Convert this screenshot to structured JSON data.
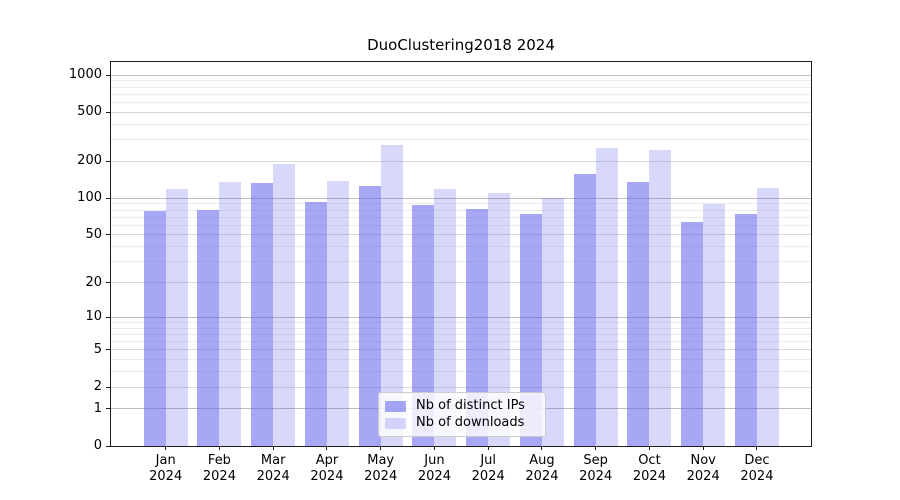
{
  "title": "DuoClustering2018 2024",
  "chart_data": {
    "type": "bar",
    "title": "DuoClustering2018 2024",
    "categories": [
      "Jan 2024",
      "Feb 2024",
      "Mar 2024",
      "Apr 2024",
      "May 2024",
      "Jun 2024",
      "Jul 2024",
      "Aug 2024",
      "Sep 2024",
      "Oct 2024",
      "Nov 2024",
      "Dec 2024"
    ],
    "x_tick_months": [
      "Jan",
      "Feb",
      "Mar",
      "Apr",
      "May",
      "Jun",
      "Jul",
      "Aug",
      "Sep",
      "Oct",
      "Nov",
      "Dec"
    ],
    "x_tick_year": "2024",
    "series": [
      {
        "name": "Nb of distinct IPs",
        "color": "rgba(98,98,238,0.56)",
        "values": [
          79,
          80,
          133,
          94,
          125,
          88,
          82,
          75,
          158,
          136,
          64,
          74
        ]
      },
      {
        "name": "Nb of downloads",
        "color": "rgba(98,98,238,0.25)",
        "values": [
          120,
          135,
          190,
          139,
          273,
          120,
          110,
          100,
          258,
          246,
          90,
          121
        ]
      }
    ],
    "y_scale": "log1p",
    "y_max": 1280,
    "y_ticks": [
      0,
      1,
      2,
      5,
      10,
      20,
      50,
      100,
      200,
      500,
      1000
    ],
    "y_minor_ticks": [
      3,
      4,
      6,
      7,
      8,
      9,
      30,
      40,
      60,
      70,
      80,
      90,
      300,
      400,
      600,
      700,
      800,
      900
    ],
    "grid": true,
    "legend_position": "lower center"
  },
  "colors": {
    "grid_major_power10": "#bdbdbd",
    "grid_major": "#dadada",
    "grid_minor": "#ececec",
    "axis": "#1c1c1c",
    "legend_border": "#cccccc"
  }
}
